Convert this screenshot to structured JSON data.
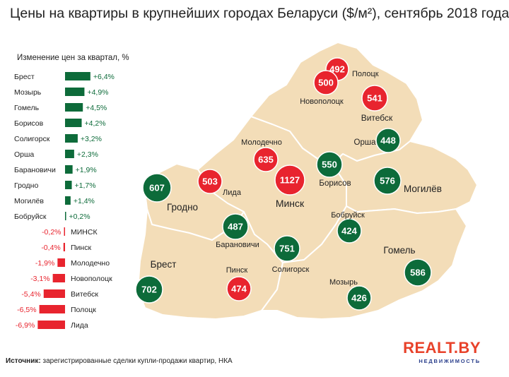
{
  "title": "Цены на квартиры в крупнейших городах Беларуси ($/м²), сентябрь 2018 года",
  "source": {
    "label": "Источник:",
    "text": " зарегистрированные сделки купли-продажи квартир, НКА"
  },
  "logo": {
    "main": "REALT.BY",
    "sub": "НЕДВИЖИМОСТЬ"
  },
  "colors": {
    "positive": "#0d6b3a",
    "negative": "#e8242e",
    "map_fill": "#f3ddb8",
    "map_stroke": "#ffffff",
    "bar_label_positive": "#0d6b3a",
    "bar_label_negative": "#e8242e"
  },
  "chart_data": {
    "type": "bar",
    "orientation": "horizontal",
    "title": "Изменение цен за квартал, %",
    "categories": [
      "Брест",
      "Мозырь",
      "Гомель",
      "Борисов",
      "Солигорск",
      "Орша",
      "Барановичи",
      "Гродно",
      "Могилёв",
      "Бобруйск",
      "МИНСК",
      "Пинск",
      "Молодечно",
      "Новополоцк",
      "Витебск",
      "Полоцк",
      "Лида"
    ],
    "values": [
      6.4,
      4.9,
      4.5,
      4.2,
      3.2,
      2.3,
      1.9,
      1.7,
      1.4,
      0.2,
      -0.2,
      -0.4,
      -1.9,
      -3.1,
      -5.4,
      -6.5,
      -6.9
    ],
    "value_labels": [
      "+6,4%",
      "+4,9%",
      "+4,5%",
      "+4,2%",
      "+3,2%",
      "+2,3%",
      "+1,9%",
      "+1,7%",
      "+1,4%",
      "+0,2%",
      "-0,2%",
      "-0,4%",
      "-1,9%",
      "-3,1%",
      "-5,4%",
      "-6,5%",
      "-6,9%"
    ]
  },
  "map": {
    "cities": [
      {
        "name": "Полоцк",
        "price": "492",
        "trend": "negative"
      },
      {
        "name": "Новополоцк",
        "price": "500",
        "trend": "negative"
      },
      {
        "name": "Витебск",
        "price": "541",
        "trend": "negative"
      },
      {
        "name": "Орша",
        "price": "448",
        "trend": "positive"
      },
      {
        "name": "Молодечно",
        "price": "635",
        "trend": "negative"
      },
      {
        "name": "Минск",
        "price": "1127",
        "trend": "negative"
      },
      {
        "name": "Борисов",
        "price": "550",
        "trend": "positive"
      },
      {
        "name": "Могилёв",
        "price": "576",
        "trend": "positive"
      },
      {
        "name": "Гродно",
        "price": "607",
        "trend": "positive"
      },
      {
        "name": "Лида",
        "price": "503",
        "trend": "negative"
      },
      {
        "name": "Барановичи",
        "price": "487",
        "trend": "positive"
      },
      {
        "name": "Бобруйск",
        "price": "424",
        "trend": "positive"
      },
      {
        "name": "Солигорск",
        "price": "751",
        "trend": "positive"
      },
      {
        "name": "Пинск",
        "price": "474",
        "trend": "negative"
      },
      {
        "name": "Брест",
        "price": "702",
        "trend": "positive"
      },
      {
        "name": "Мозырь",
        "price": "426",
        "trend": "positive"
      },
      {
        "name": "Гомель",
        "price": "586",
        "trend": "positive"
      }
    ]
  }
}
